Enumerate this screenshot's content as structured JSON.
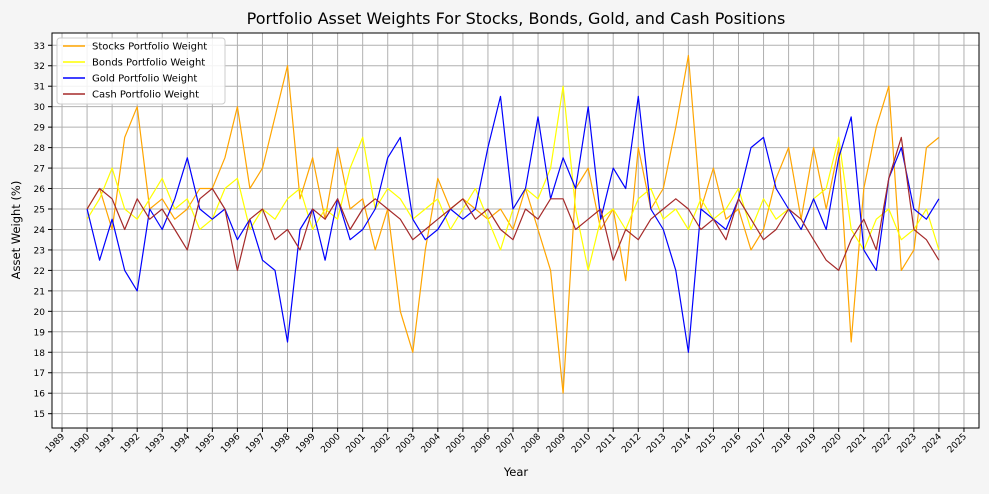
{
  "chart_data": {
    "type": "line",
    "title": "Portfolio Asset Weights For Stocks, Bonds, Gold, and Cash Positions",
    "xlabel": "Year",
    "ylabel": "Asset Weight (%)",
    "xlim": [
      1988.6,
      2025.6
    ],
    "ylim": [
      14.3,
      33.6
    ],
    "x_ticks": [
      "1989",
      "1990",
      "1991",
      "1992",
      "1993",
      "1994",
      "1995",
      "1996",
      "1997",
      "1998",
      "1999",
      "2000",
      "2001",
      "2002",
      "2003",
      "2004",
      "2005",
      "2006",
      "2007",
      "2008",
      "2009",
      "2010",
      "2011",
      "2012",
      "2013",
      "2014",
      "2015",
      "2016",
      "2017",
      "2018",
      "2019",
      "2020",
      "2021",
      "2022",
      "2023",
      "2024",
      "2025"
    ],
    "y_ticks": [
      15,
      16,
      17,
      18,
      19,
      20,
      21,
      22,
      23,
      24,
      25,
      26,
      27,
      28,
      29,
      30,
      31,
      32,
      33
    ],
    "grid": true,
    "legend_position": "top-left",
    "series": [
      {
        "name": "Stocks Portfolio Weight",
        "color": "#ffa500",
        "x": [
          1990.0,
          1990.5,
          1991.0,
          1991.5,
          1992.0,
          1992.5,
          1993.0,
          1993.5,
          1994.0,
          1994.5,
          1995.0,
          1995.5,
          1996.0,
          1996.5,
          1997.0,
          1997.5,
          1998.0,
          1998.5,
          1999.0,
          1999.5,
          2000.0,
          2000.5,
          2001.0,
          2001.5,
          2002.0,
          2002.5,
          2003.0,
          2003.5,
          2004.0,
          2004.5,
          2005.0,
          2005.5,
          2006.0,
          2006.5,
          2007.0,
          2007.5,
          2008.0,
          2008.5,
          2009.0,
          2009.5,
          2010.0,
          2010.5,
          2011.0,
          2011.5,
          2012.0,
          2012.5,
          2013.0,
          2013.5,
          2014.0,
          2014.5,
          2015.0,
          2015.5,
          2016.0,
          2016.5,
          2017.0,
          2017.5,
          2018.0,
          2018.5,
          2019.0,
          2019.5,
          2020.0,
          2020.5,
          2021.0,
          2021.5,
          2022.0,
          2022.5,
          2023.0,
          2023.5,
          2024.0
        ],
        "y": [
          25.0,
          26.0,
          24.0,
          28.5,
          30.0,
          25.0,
          25.5,
          24.5,
          25.0,
          26.0,
          26.0,
          27.5,
          30.0,
          26.0,
          27.0,
          29.5,
          32.0,
          25.5,
          27.5,
          24.5,
          28.0,
          25.0,
          25.5,
          23.0,
          25.0,
          20.0,
          18.0,
          23.0,
          26.5,
          25.0,
          25.5,
          25.0,
          24.5,
          25.0,
          24.0,
          26.0,
          24.0,
          22.0,
          16.0,
          26.0,
          27.0,
          24.0,
          25.0,
          21.5,
          28.0,
          25.0,
          26.0,
          29.0,
          32.5,
          25.0,
          27.0,
          24.5,
          25.0,
          23.0,
          24.0,
          26.5,
          28.0,
          24.5,
          28.0,
          25.0,
          28.0,
          18.5,
          26.0,
          29.0,
          31.0,
          22.0,
          23.0,
          28.0,
          28.5
        ]
      },
      {
        "name": "Bonds Portfolio Weight",
        "color": "#ffff00",
        "x": [
          1990.0,
          1990.5,
          1991.0,
          1991.5,
          1992.0,
          1992.5,
          1993.0,
          1993.5,
          1994.0,
          1994.5,
          1995.0,
          1995.5,
          1996.0,
          1996.5,
          1997.0,
          1997.5,
          1998.0,
          1998.5,
          1999.0,
          1999.5,
          2000.0,
          2000.5,
          2001.0,
          2001.5,
          2002.0,
          2002.5,
          2003.0,
          2003.5,
          2004.0,
          2004.5,
          2005.0,
          2005.5,
          2006.0,
          2006.5,
          2007.0,
          2007.5,
          2008.0,
          2008.5,
          2009.0,
          2009.5,
          2010.0,
          2010.5,
          2011.0,
          2011.5,
          2012.0,
          2012.5,
          2013.0,
          2013.5,
          2014.0,
          2014.5,
          2015.0,
          2015.5,
          2016.0,
          2016.5,
          2017.0,
          2017.5,
          2018.0,
          2018.5,
          2019.0,
          2019.5,
          2020.0,
          2020.5,
          2021.0,
          2021.5,
          2022.0,
          2022.5,
          2023.0,
          2023.5,
          2024.0
        ],
        "y": [
          24.5,
          25.5,
          27.0,
          25.0,
          24.5,
          25.5,
          26.5,
          25.0,
          25.5,
          24.0,
          24.5,
          26.0,
          26.5,
          24.0,
          25.0,
          24.5,
          25.5,
          26.0,
          24.0,
          25.0,
          24.5,
          27.0,
          28.5,
          25.0,
          26.0,
          25.5,
          24.5,
          25.0,
          25.5,
          24.0,
          25.0,
          26.0,
          24.5,
          23.0,
          25.0,
          26.0,
          25.5,
          27.0,
          31.0,
          25.0,
          22.0,
          24.5,
          25.0,
          24.0,
          25.5,
          26.0,
          24.5,
          25.0,
          24.0,
          25.5,
          24.5,
          25.0,
          26.0,
          24.0,
          25.5,
          24.5,
          25.0,
          24.0,
          25.5,
          26.0,
          28.5,
          24.0,
          23.0,
          24.5,
          25.0,
          23.5,
          24.0,
          25.0,
          23.0
        ]
      },
      {
        "name": "Gold Portfolio Weight",
        "color": "#0000ff",
        "x": [
          1990.0,
          1990.5,
          1991.0,
          1991.5,
          1992.0,
          1992.5,
          1993.0,
          1993.5,
          1994.0,
          1994.5,
          1995.0,
          1995.5,
          1996.0,
          1996.5,
          1997.0,
          1997.5,
          1998.0,
          1998.5,
          1999.0,
          1999.5,
          2000.0,
          2000.5,
          2001.0,
          2001.5,
          2002.0,
          2002.5,
          2003.0,
          2003.5,
          2004.0,
          2004.5,
          2005.0,
          2005.5,
          2006.0,
          2006.5,
          2007.0,
          2007.5,
          2008.0,
          2008.5,
          2009.0,
          2009.5,
          2010.0,
          2010.5,
          2011.0,
          2011.5,
          2012.0,
          2012.5,
          2013.0,
          2013.5,
          2014.0,
          2014.5,
          2015.0,
          2015.5,
          2016.0,
          2016.5,
          2017.0,
          2017.5,
          2018.0,
          2018.5,
          2019.0,
          2019.5,
          2020.0,
          2020.5,
          2021.0,
          2021.5,
          2022.0,
          2022.5,
          2023.0,
          2023.5,
          2024.0
        ],
        "y": [
          25.0,
          22.5,
          24.5,
          22.0,
          21.0,
          25.0,
          24.0,
          25.5,
          27.5,
          25.0,
          24.5,
          25.0,
          23.5,
          24.5,
          22.5,
          22.0,
          18.5,
          24.0,
          25.0,
          22.5,
          25.5,
          23.5,
          24.0,
          25.0,
          27.5,
          28.5,
          24.5,
          23.5,
          24.0,
          25.0,
          24.5,
          25.0,
          28.0,
          30.5,
          25.0,
          26.0,
          29.5,
          25.5,
          27.5,
          26.0,
          30.0,
          24.5,
          27.0,
          26.0,
          30.5,
          25.0,
          24.0,
          22.0,
          18.0,
          25.0,
          24.5,
          24.0,
          25.5,
          28.0,
          28.5,
          26.0,
          25.0,
          24.0,
          25.5,
          24.0,
          27.5,
          29.5,
          23.0,
          22.0,
          26.5,
          28.0,
          25.0,
          24.5,
          25.5
        ]
      },
      {
        "name": "Cash Portfolio Weight",
        "color": "#a52a2a",
        "x": [
          1990.0,
          1990.5,
          1991.0,
          1991.5,
          1992.0,
          1992.5,
          1993.0,
          1993.5,
          1994.0,
          1994.5,
          1995.0,
          1995.5,
          1996.0,
          1996.5,
          1997.0,
          1997.5,
          1998.0,
          1998.5,
          1999.0,
          1999.5,
          2000.0,
          2000.5,
          2001.0,
          2001.5,
          2002.0,
          2002.5,
          2003.0,
          2003.5,
          2004.0,
          2004.5,
          2005.0,
          2005.5,
          2006.0,
          2006.5,
          2007.0,
          2007.5,
          2008.0,
          2008.5,
          2009.0,
          2009.5,
          2010.0,
          2010.5,
          2011.0,
          2011.5,
          2012.0,
          2012.5,
          2013.0,
          2013.5,
          2014.0,
          2014.5,
          2015.0,
          2015.5,
          2016.0,
          2016.5,
          2017.0,
          2017.5,
          2018.0,
          2018.5,
          2019.0,
          2019.5,
          2020.0,
          2020.5,
          2021.0,
          2021.5,
          2022.0,
          2022.5,
          2023.0,
          2023.5,
          2024.0
        ],
        "y": [
          25.0,
          26.0,
          25.5,
          24.0,
          25.5,
          24.5,
          25.0,
          24.0,
          23.0,
          25.5,
          26.0,
          25.0,
          22.0,
          24.5,
          25.0,
          23.5,
          24.0,
          23.0,
          25.0,
          24.5,
          25.5,
          24.0,
          25.0,
          25.5,
          25.0,
          24.5,
          23.5,
          24.0,
          24.5,
          25.0,
          25.5,
          24.5,
          25.0,
          24.0,
          23.5,
          25.0,
          24.5,
          25.5,
          25.5,
          24.0,
          24.5,
          25.0,
          22.5,
          24.0,
          23.5,
          24.5,
          25.0,
          25.5,
          25.0,
          24.0,
          24.5,
          23.5,
          25.5,
          24.5,
          23.5,
          24.0,
          25.0,
          24.5,
          23.5,
          22.5,
          22.0,
          23.5,
          24.5,
          23.0,
          26.5,
          28.5,
          24.0,
          23.5,
          22.5
        ]
      }
    ]
  }
}
